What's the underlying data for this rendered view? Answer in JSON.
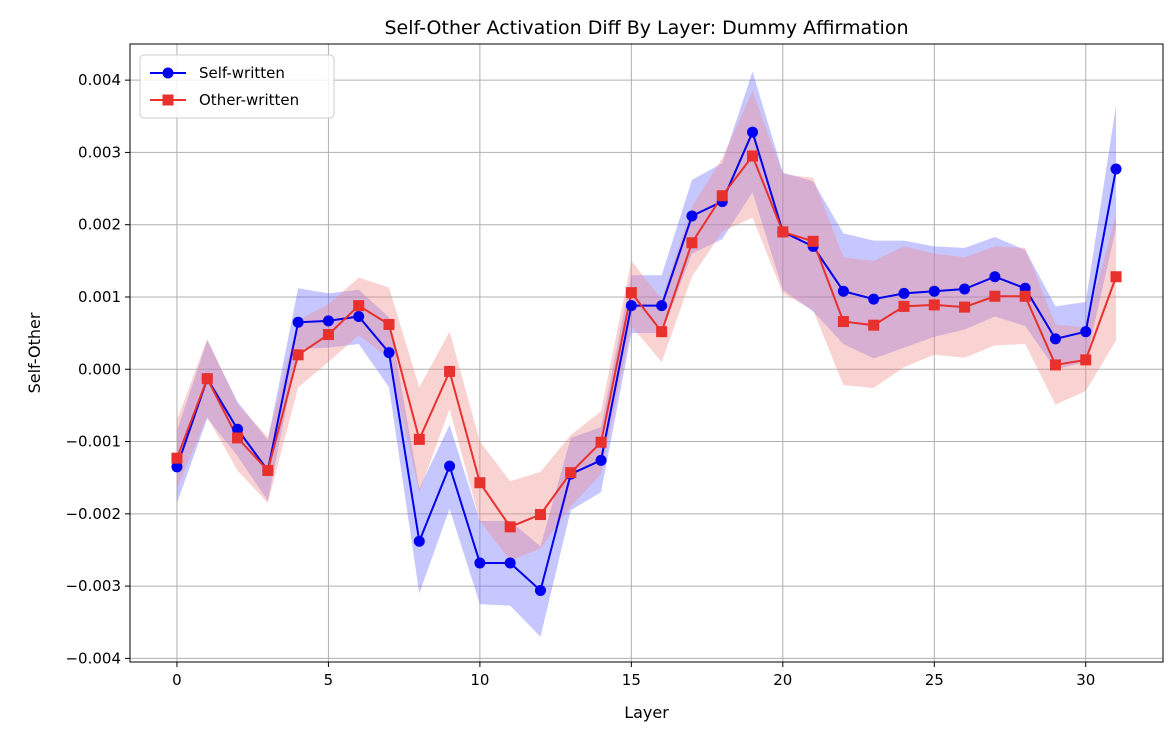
{
  "chart_data": {
    "type": "line",
    "title": "Self-Other Activation Diff By Layer: Dummy Affirmation",
    "xlabel": "Layer",
    "ylabel": "Self-Other",
    "xlim": [
      -1.55,
      32.55
    ],
    "ylim": [
      -0.00405,
      0.0045
    ],
    "xticks": [
      0,
      5,
      10,
      15,
      20,
      25,
      30
    ],
    "xtick_labels": [
      "0",
      "5",
      "10",
      "15",
      "20",
      "25",
      "30"
    ],
    "yticks": [
      -0.004,
      -0.003,
      -0.002,
      -0.001,
      0.0,
      0.001,
      0.002,
      0.003,
      0.004
    ],
    "ytick_labels": [
      "−0.004",
      "−0.003",
      "−0.002",
      "−0.001",
      "0.000",
      "0.001",
      "0.002",
      "0.003",
      "0.004"
    ],
    "grid": true,
    "legend_position": "top-left",
    "x": [
      0,
      1,
      2,
      3,
      4,
      5,
      6,
      7,
      8,
      9,
      10,
      11,
      12,
      13,
      14,
      15,
      16,
      17,
      18,
      19,
      20,
      21,
      22,
      23,
      24,
      25,
      26,
      27,
      28,
      29,
      30,
      31
    ],
    "series": [
      {
        "name": "Self-written",
        "color": "#0000ee",
        "fill_color": "#6b6bff",
        "marker": "circle",
        "values": [
          -0.00135,
          -0.00013,
          -0.00083,
          -0.0014,
          0.00065,
          0.00067,
          0.00073,
          0.00023,
          -0.00238,
          -0.00134,
          -0.00268,
          -0.00268,
          -0.00306,
          -0.00145,
          -0.00126,
          0.00088,
          0.00088,
          0.00212,
          0.00232,
          0.00328,
          0.0019,
          0.0017,
          0.00108,
          0.00097,
          0.00105,
          0.00108,
          0.00111,
          0.00128,
          0.00112,
          0.00042,
          0.00052,
          0.00277
        ],
        "lower": [
          -0.00185,
          -0.00068,
          -0.0012,
          -0.00182,
          0.00028,
          0.0003,
          0.00035,
          -0.00025,
          -0.0031,
          -0.00193,
          -0.00325,
          -0.00327,
          -0.0037,
          -0.00195,
          -0.0017,
          0.0005,
          0.0005,
          0.0016,
          0.0018,
          0.00245,
          0.0011,
          0.0008,
          0.00035,
          0.00015,
          0.0003,
          0.00045,
          0.00055,
          0.00073,
          0.0006,
          0.0,
          0.0001,
          0.00195
        ],
        "upper": [
          -0.00085,
          0.0004,
          -0.00045,
          -0.00098,
          0.00112,
          0.00105,
          0.0011,
          0.00072,
          -0.00165,
          -0.00077,
          -0.0021,
          -0.0021,
          -0.00245,
          -0.00095,
          -0.0008,
          0.0013,
          0.0013,
          0.00262,
          0.00285,
          0.00412,
          0.00272,
          0.0026,
          0.00188,
          0.00178,
          0.00178,
          0.0017,
          0.00168,
          0.00183,
          0.00165,
          0.00087,
          0.00093,
          0.00365
        ]
      },
      {
        "name": "Other-written",
        "color": "#e8302c",
        "fill_color": "#f08a88",
        "marker": "square",
        "values": [
          -0.00123,
          -0.00013,
          -0.00095,
          -0.0014,
          0.0002,
          0.00048,
          0.00088,
          0.00062,
          -0.00097,
          -3e-05,
          -0.00157,
          -0.00218,
          -0.00201,
          -0.00143,
          -0.00101,
          0.00106,
          0.00052,
          0.00175,
          0.0024,
          0.00295,
          0.0019,
          0.00177,
          0.00066,
          0.00061,
          0.00087,
          0.00089,
          0.00086,
          0.00101,
          0.00101,
          6e-05,
          0.00013,
          0.00128
        ],
        "lower": [
          -0.00165,
          -0.00066,
          -0.0014,
          -0.00185,
          -0.00025,
          0.0001,
          0.00047,
          0.00015,
          -0.0017,
          -0.00055,
          -0.0021,
          -0.00265,
          -0.00248,
          -0.0019,
          -0.00145,
          0.0006,
          0.0001,
          0.00128,
          0.0019,
          0.0021,
          0.00105,
          0.00082,
          -0.00022,
          -0.00026,
          3e-05,
          0.0002,
          0.00016,
          0.00033,
          0.00035,
          -0.00049,
          -0.0003,
          0.0004
        ],
        "upper": [
          -0.0007,
          0.00042,
          -0.00048,
          -0.00094,
          0.00068,
          0.0009,
          0.00127,
          0.00113,
          -0.00025,
          0.00052,
          -0.001,
          -0.00155,
          -0.00142,
          -0.00091,
          -0.00058,
          0.0015,
          0.00097,
          0.00225,
          0.00292,
          0.00385,
          0.0027,
          0.00265,
          0.00155,
          0.0015,
          0.0017,
          0.0016,
          0.00155,
          0.0017,
          0.00168,
          0.00062,
          0.00058,
          0.00215
        ]
      }
    ]
  }
}
